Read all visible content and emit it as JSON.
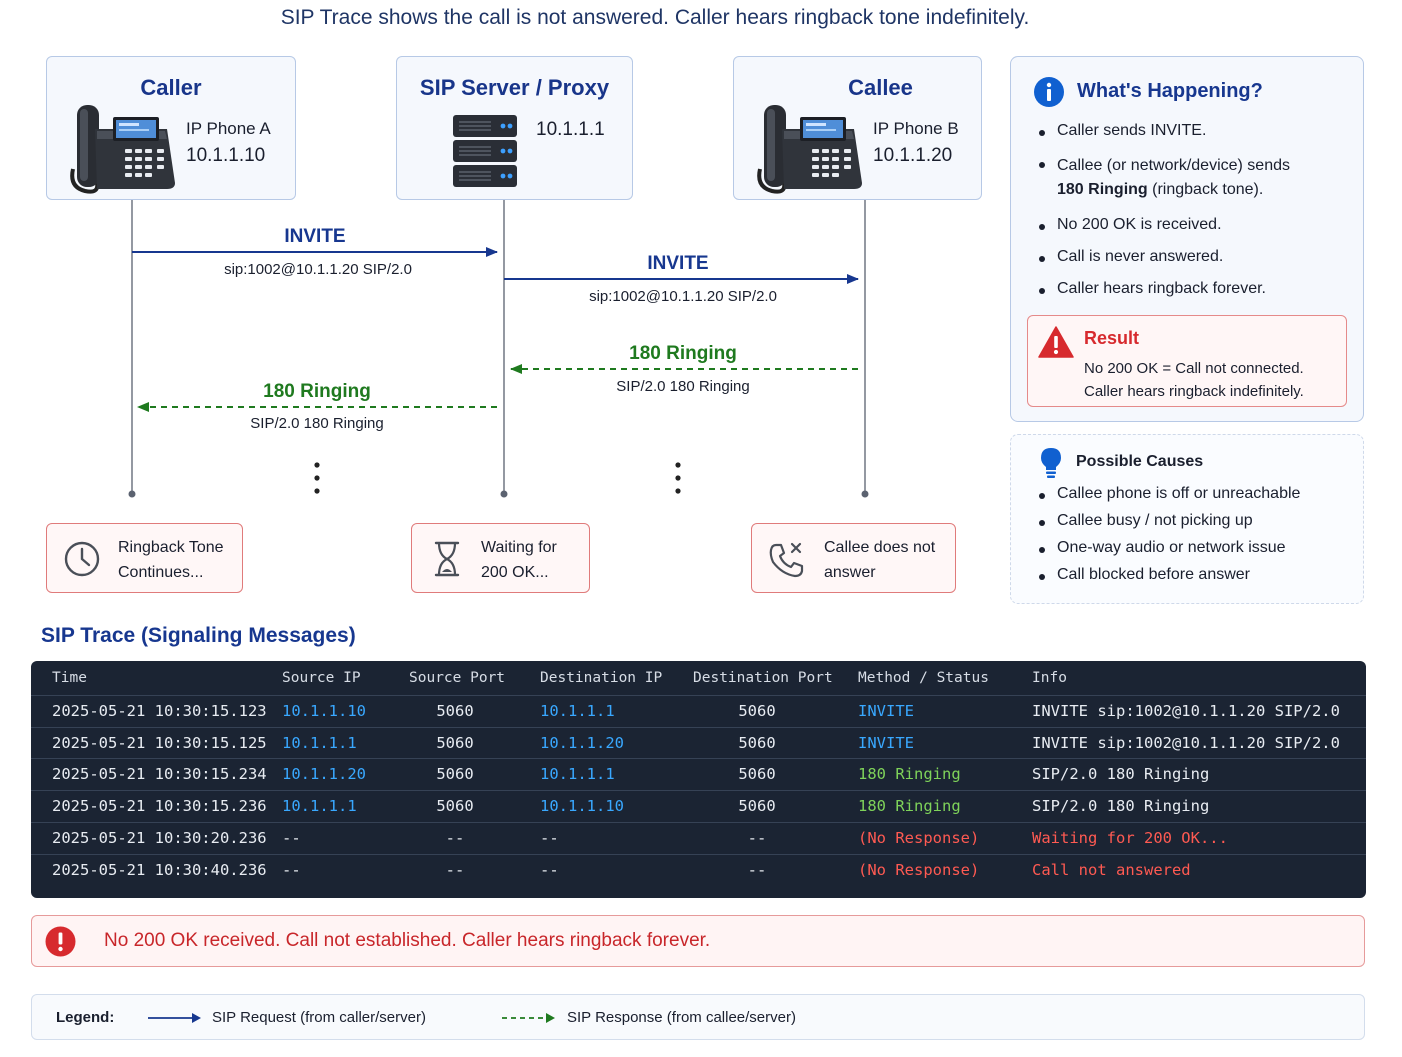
{
  "headline": "SIP Trace shows the call is not answered. Caller hears ringback tone indefinitely.",
  "nodes": {
    "caller": {
      "title": "Caller",
      "device": "IP Phone A",
      "ip": "10.1.1.10"
    },
    "server": {
      "title": "SIP Server / Proxy",
      "ip": "10.1.1.1"
    },
    "callee": {
      "title": "Callee",
      "device": "IP Phone B",
      "ip": "10.1.1.20"
    }
  },
  "messages": [
    {
      "label": "INVITE",
      "detail": "sip:1002@10.1.1.20 SIP/2.0",
      "kind": "request"
    },
    {
      "label": "INVITE",
      "detail": "sip:1002@10.1.1.20 SIP/2.0",
      "kind": "request"
    },
    {
      "label": "180 Ringing",
      "detail": "SIP/2.0 180 Ringing",
      "kind": "response"
    },
    {
      "label": "180 Ringing",
      "detail": "SIP/2.0 180 Ringing",
      "kind": "response"
    }
  ],
  "status_boxes": {
    "ringback": {
      "line1": "Ringback Tone",
      "line2": "Continues..."
    },
    "waiting": {
      "line1": "Waiting for",
      "line2": "200 OK..."
    },
    "no_answer": {
      "line1": "Callee does not",
      "line2": "answer"
    }
  },
  "whats_happening": {
    "title": "What's Happening?",
    "items": [
      {
        "text": "Caller sends INVITE."
      },
      {
        "text": "Callee (or network/device) sends",
        "bold": "180 Ringing",
        "rest": " (ringback tone)."
      },
      {
        "text": "No 200 OK is received."
      },
      {
        "text": "Call is never answered."
      },
      {
        "text": "Caller hears ringback forever."
      }
    ],
    "result": {
      "title": "Result",
      "line1": "No 200 OK = Call not connected.",
      "line2": "Caller hears ringback indefinitely."
    }
  },
  "possible_causes": {
    "title": "Possible Causes",
    "items": [
      "Callee phone is off or unreachable",
      "Callee busy / not picking up",
      "One-way audio or network issue",
      "Call blocked before answer"
    ]
  },
  "trace": {
    "title": "SIP Trace (Signaling Messages)",
    "headers": [
      "Time",
      "Source IP",
      "Source Port",
      "Destination IP",
      "Destination Port",
      "Method / Status",
      "Info"
    ],
    "rows": [
      {
        "time": "2025-05-21 10:30:15.123",
        "src_ip": "10.1.1.10",
        "src_port": "5060",
        "dst_ip": "10.1.1.1",
        "dst_port": "5060",
        "method": "INVITE",
        "info": "INVITE sip:1002@10.1.1.20 SIP/2.0",
        "state": "request"
      },
      {
        "time": "2025-05-21 10:30:15.125",
        "src_ip": "10.1.1.1",
        "src_port": "5060",
        "dst_ip": "10.1.1.20",
        "dst_port": "5060",
        "method": "INVITE",
        "info": "INVITE sip:1002@10.1.1.20 SIP/2.0",
        "state": "request"
      },
      {
        "time": "2025-05-21 10:30:15.234",
        "src_ip": "10.1.1.20",
        "src_port": "5060",
        "dst_ip": "10.1.1.1",
        "dst_port": "5060",
        "method": "180 Ringing",
        "info": "SIP/2.0 180 Ringing",
        "state": "ringing"
      },
      {
        "time": "2025-05-21 10:30:15.236",
        "src_ip": "10.1.1.1",
        "src_port": "5060",
        "dst_ip": "10.1.1.10",
        "dst_port": "5060",
        "method": "180 Ringing",
        "info": "SIP/2.0 180 Ringing",
        "state": "ringing"
      },
      {
        "time": "2025-05-21 10:30:20.236",
        "src_ip": "--",
        "src_port": "--",
        "dst_ip": "--",
        "dst_port": "--",
        "method": "(No Response)",
        "info": "Waiting for 200 OK...",
        "state": "error"
      },
      {
        "time": "2025-05-21 10:30:40.236",
        "src_ip": "--",
        "src_port": "--",
        "dst_ip": "--",
        "dst_port": "--",
        "method": "(No Response)",
        "info": "Call not answered",
        "state": "error"
      }
    ]
  },
  "alert": "No 200 OK received. Call not established. Caller hears ringback forever.",
  "legend": {
    "label": "Legend:",
    "request": "SIP Request (from caller/server)",
    "response": "SIP Response (from callee/server)"
  },
  "colors": {
    "request": "#17378f",
    "response": "#1f7a1f",
    "error": "#d72a2e",
    "info": "#1060d0"
  }
}
